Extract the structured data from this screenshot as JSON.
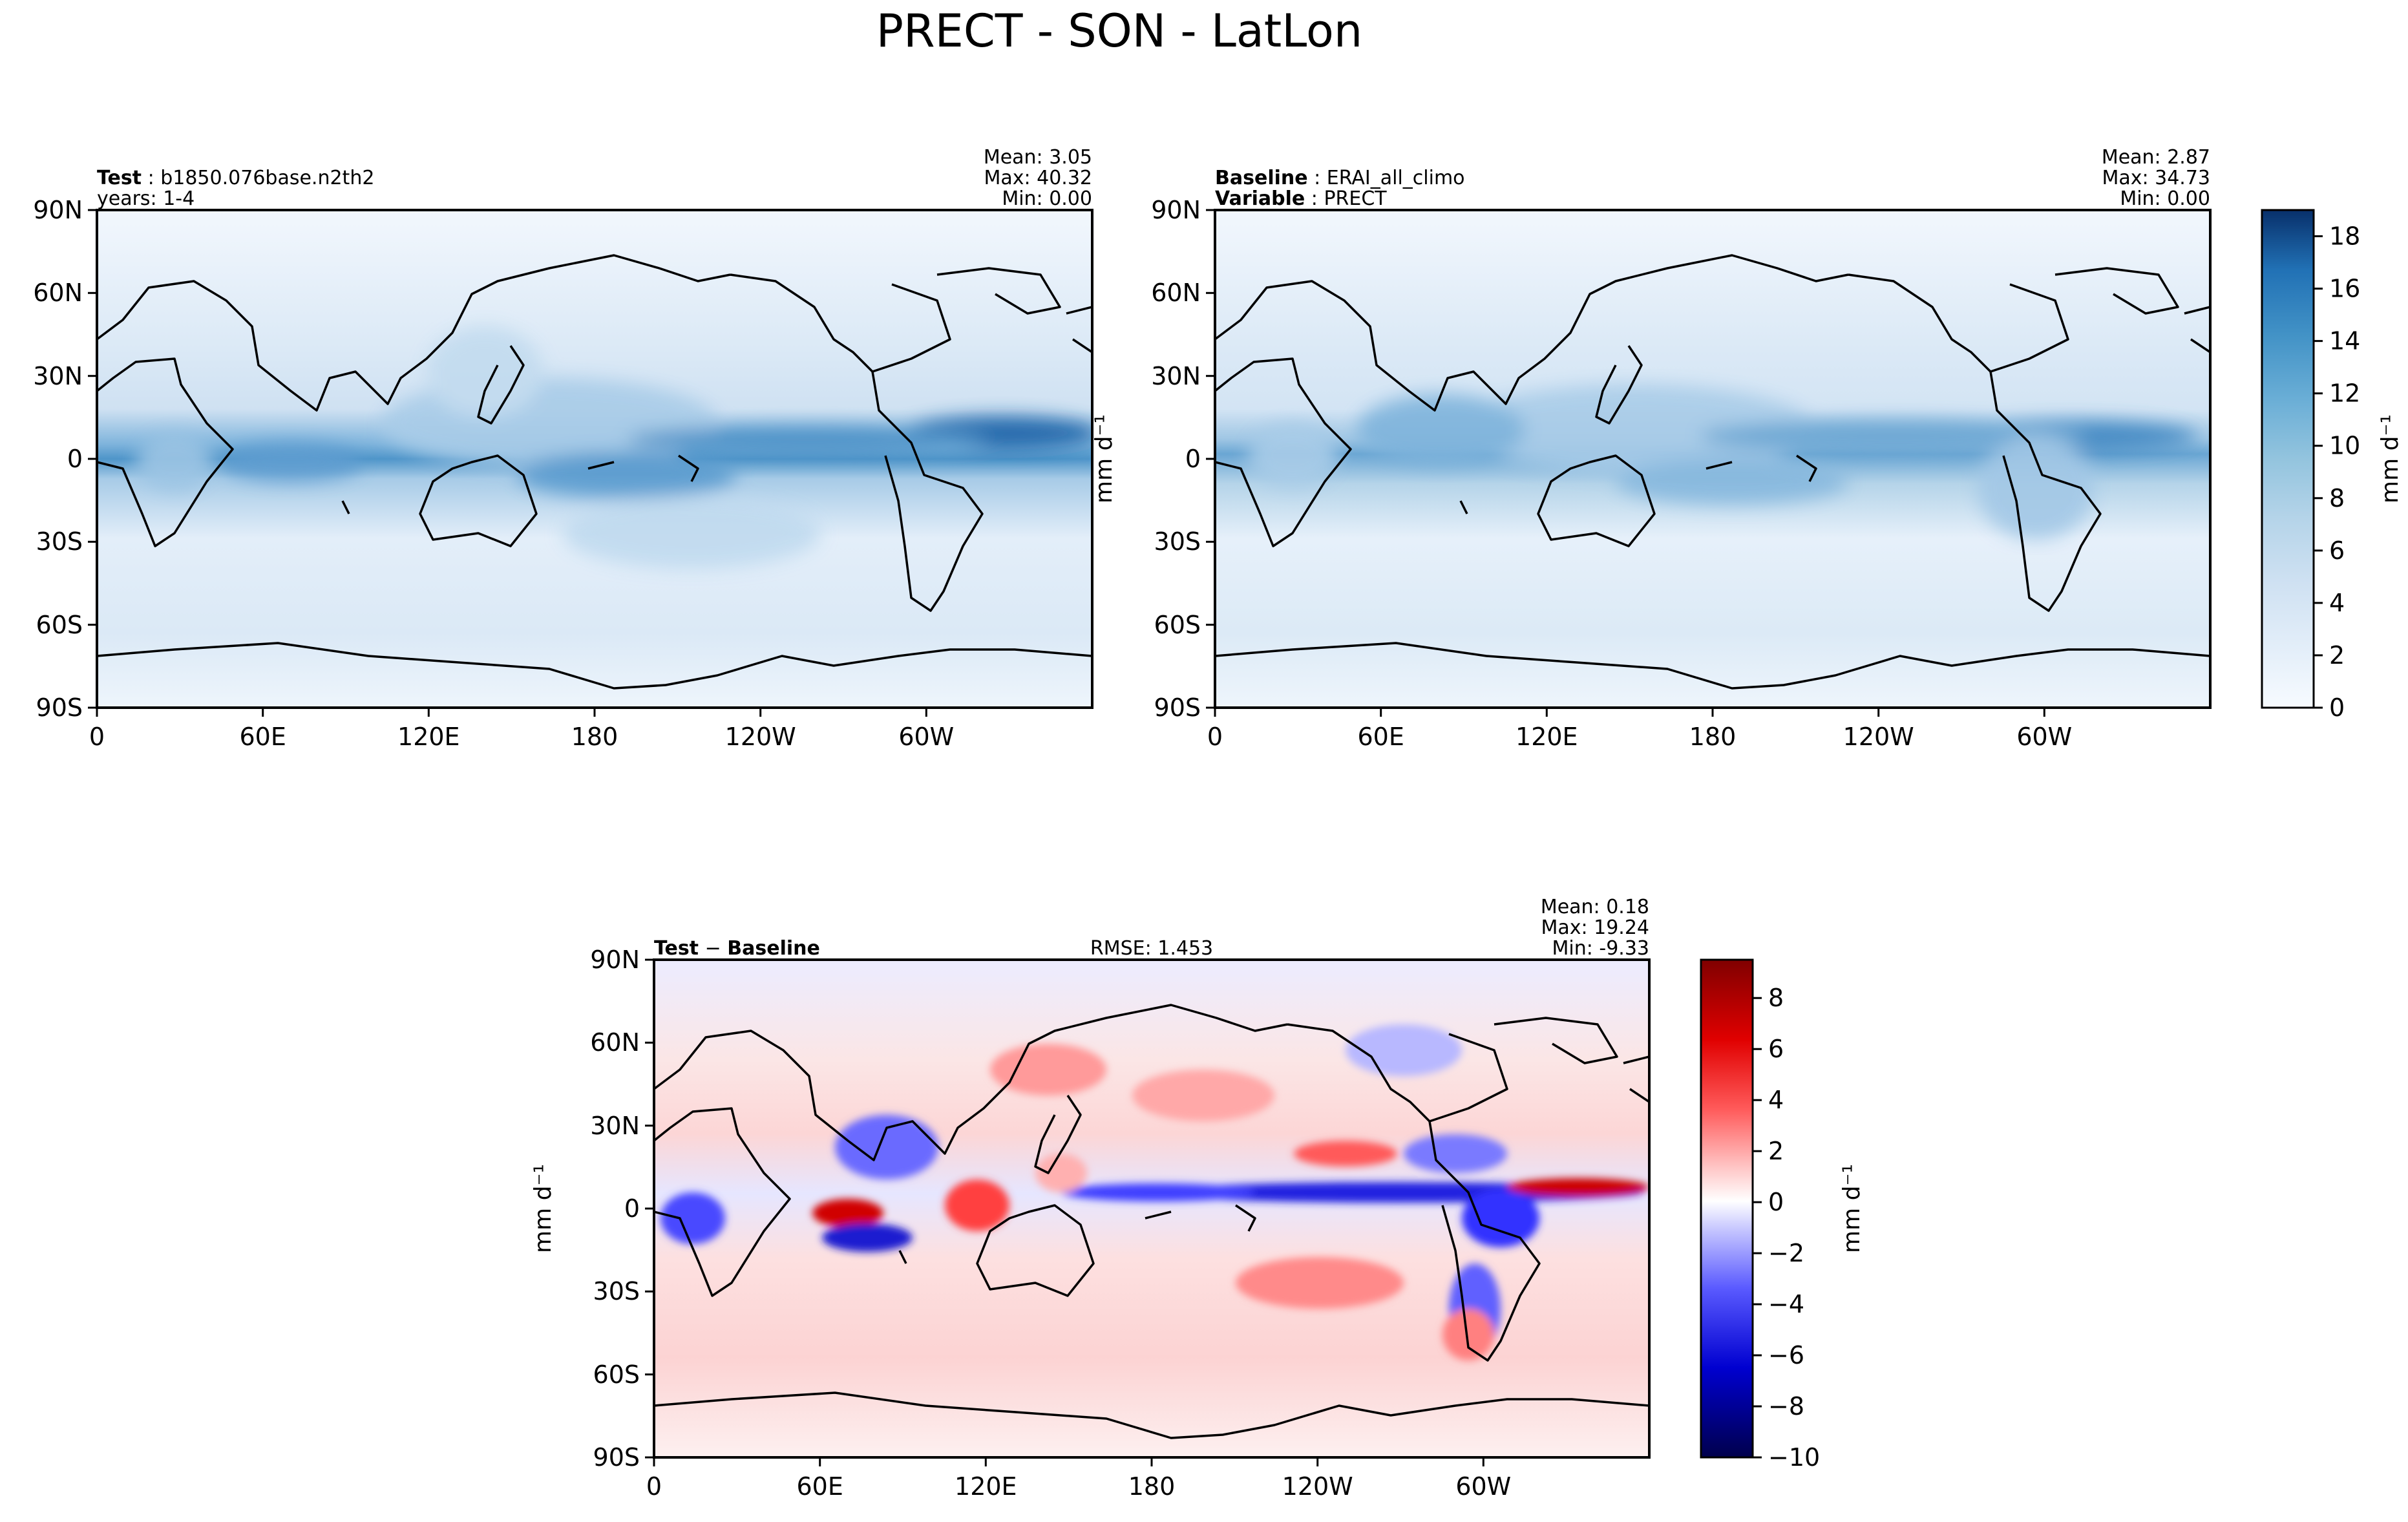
{
  "figure": {
    "title": "PRECT - SON - LatLon"
  },
  "chart_data": [
    {
      "type": "heatmap",
      "id": "test",
      "left_label_bold": "Test",
      "left_label_value": "b1850.076base.n2th2",
      "left_label_line2": "years: 1-4",
      "stats": [
        "Mean:  3.05",
        "Max: 40.32",
        "Min:  0.00"
      ],
      "xticks": [
        "0",
        "60E",
        "120E",
        "180",
        "120W",
        "60W"
      ],
      "yticks": [
        "90N",
        "60N",
        "30N",
        "0",
        "30S",
        "60S",
        "90S"
      ],
      "xlim": [
        0,
        360
      ],
      "ylim": [
        -90,
        90
      ],
      "colormap": "Blues"
    },
    {
      "type": "heatmap",
      "id": "baseline",
      "left_label_bold": "Baseline",
      "left_label_value": "ERAI_all_climo",
      "left_label_bold2": "Variable",
      "left_label_value2": "PRECT",
      "stats": [
        "Mean:  2.87",
        "Max: 34.73",
        "Min:  0.00"
      ],
      "xticks": [
        "0",
        "60E",
        "120E",
        "180",
        "120W",
        "60W"
      ],
      "yticks": [
        "90N",
        "60N",
        "30N",
        "0",
        "30S",
        "60S",
        "90S"
      ],
      "ylabel": "mm d⁻¹",
      "xlim": [
        0,
        360
      ],
      "ylim": [
        -90,
        90
      ],
      "colorbar": {
        "ticks": [
          "0",
          "2",
          "4",
          "6",
          "8",
          "10",
          "12",
          "14",
          "16",
          "18"
        ],
        "range": [
          0,
          19
        ],
        "label": "mm d⁻¹",
        "colors": [
          "#f7fbff",
          "#e3eef9",
          "#d6e6f4",
          "#c8ddf0",
          "#b5d4e9",
          "#9ecae1",
          "#84bcdb",
          "#6baed6",
          "#529dcc",
          "#3d8dc4",
          "#2b7bba",
          "#1c6aaf",
          "#0c58a0",
          "#08468b",
          "#08306b"
        ]
      }
    },
    {
      "type": "heatmap",
      "id": "diff",
      "left_label_bold": "Test",
      "left_label_sep": " − ",
      "left_label_bold2": "Baseline",
      "center_label": "RMSE: 1.453",
      "stats": [
        "Mean:  0.18",
        "Max: 19.24",
        "Min: -9.33"
      ],
      "xticks": [
        "0",
        "60E",
        "120E",
        "180",
        "120W",
        "60W"
      ],
      "yticks": [
        "90N",
        "60N",
        "30N",
        "0",
        "30S",
        "60S",
        "90S"
      ],
      "ylabel": "mm d⁻¹",
      "xlim": [
        0,
        360
      ],
      "ylim": [
        -90,
        90
      ],
      "colormap": "seismic",
      "colorbar": {
        "ticks": [
          "8",
          "6",
          "4",
          "2",
          "0",
          "−2",
          "−4",
          "−6",
          "−8",
          "−10"
        ],
        "range": [
          -10,
          9.5
        ],
        "label": "mm d⁻¹"
      }
    }
  ]
}
